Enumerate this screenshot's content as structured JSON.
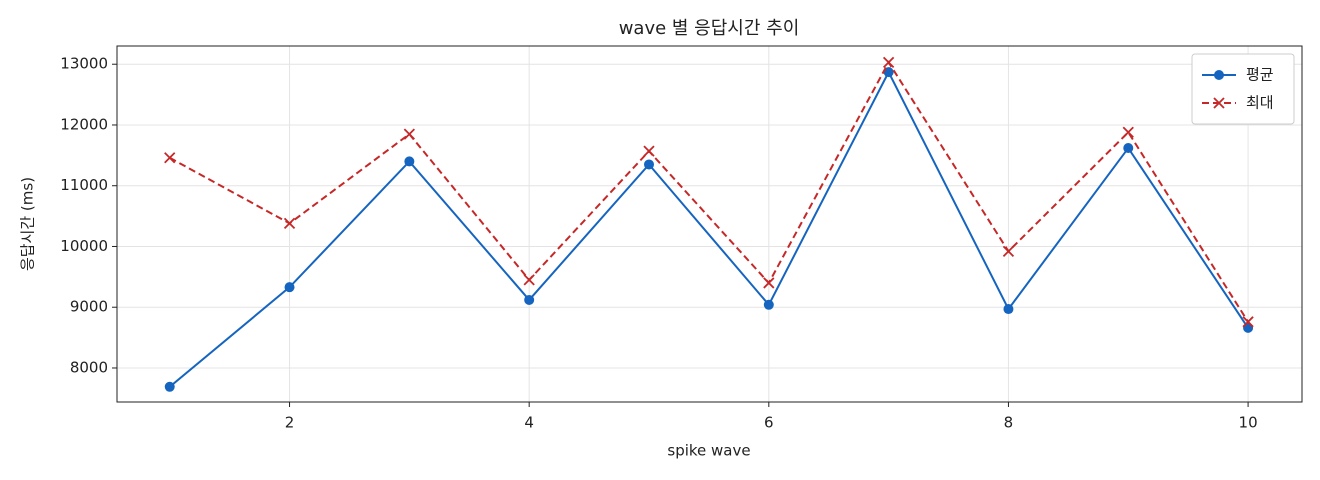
{
  "chart_data": {
    "type": "line",
    "title": "wave 별 응답시간 추이",
    "xlabel": "spike wave",
    "ylabel": "응답시간 (ms)",
    "x": [
      1,
      2,
      3,
      4,
      5,
      6,
      7,
      8,
      9,
      10
    ],
    "series": [
      {
        "name": "평균",
        "color": "#1565c0",
        "marker": "circle",
        "dash": "solid",
        "values": [
          7690,
          9330,
          11400,
          9120,
          11350,
          9040,
          12870,
          8970,
          11620,
          8660
        ]
      },
      {
        "name": "최대",
        "color": "#c62828",
        "marker": "x",
        "dash": "dashed",
        "values": [
          11460,
          10380,
          11850,
          9450,
          11570,
          9400,
          13030,
          9920,
          11880,
          8760
        ]
      }
    ],
    "xlim": [
      0.56,
      10.45
    ],
    "ylim": [
      7440,
      13300
    ],
    "xticks": [
      2,
      4,
      6,
      8,
      10
    ],
    "yticks": [
      8000,
      9000,
      10000,
      11000,
      12000,
      13000
    ],
    "grid": true,
    "legend": "upper right"
  }
}
